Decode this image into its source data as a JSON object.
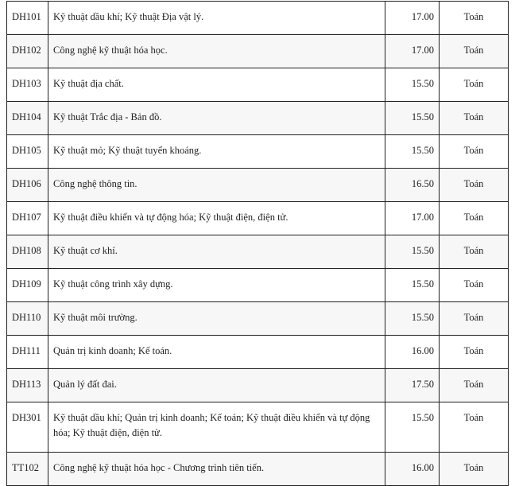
{
  "rows": [
    {
      "code": "DH101",
      "name": "Kỹ thuật dầu khí; Kỹ thuật Địa vật lý.",
      "score": "17.00",
      "subject": "Toán"
    },
    {
      "code": "DH102",
      "name": "Công nghệ kỹ thuật hóa học.",
      "score": "17.00",
      "subject": "Toán"
    },
    {
      "code": "DH103",
      "name": "Kỹ thuật địa chất.",
      "score": "15.50",
      "subject": "Toán"
    },
    {
      "code": "DH104",
      "name": "Kỹ thuật Trắc địa - Bản đồ.",
      "score": "15.50",
      "subject": "Toán"
    },
    {
      "code": "DH105",
      "name": "Kỹ thuật mỏ; Kỹ thuật tuyển khoáng.",
      "score": "15.50",
      "subject": "Toán"
    },
    {
      "code": "DH106",
      "name": "Công nghệ thông tin.",
      "score": "16.50",
      "subject": "Toán"
    },
    {
      "code": "DH107",
      "name": "Kỹ thuật điều khiển và tự động hóa; Kỹ thuật điện, điện tử.",
      "score": "17.00",
      "subject": "Toán"
    },
    {
      "code": "DH108",
      "name": "Kỹ thuật cơ khí.",
      "score": "15.50",
      "subject": "Toán"
    },
    {
      "code": "DH109",
      "name": "Kỹ thuật công trình xây dựng.",
      "score": "15.50",
      "subject": "Toán"
    },
    {
      "code": "DH110",
      "name": "Kỹ thuật môi trường.",
      "score": "15.50",
      "subject": "Toán"
    },
    {
      "code": "DH111",
      "name": "Quản trị kinh doanh; Kế toán.",
      "score": "16.00",
      "subject": "Toán"
    },
    {
      "code": "DH113",
      "name": "Quản lý đất đai.",
      "score": "17.50",
      "subject": "Toán"
    },
    {
      "code": "DH301",
      "name": "Kỹ thuật dầu khí; Quản trị kinh doanh; Kế toán; Kỹ thuật điều khiển và tự động hóa; Kỹ thuật điện, điện tử.",
      "score": "15.50",
      "subject": "Toán"
    },
    {
      "code": "TT102",
      "name": "Công nghệ kỹ thuật hóa học - Chương trình tiên tiến.",
      "score": "16.00",
      "subject": "Toán"
    }
  ]
}
